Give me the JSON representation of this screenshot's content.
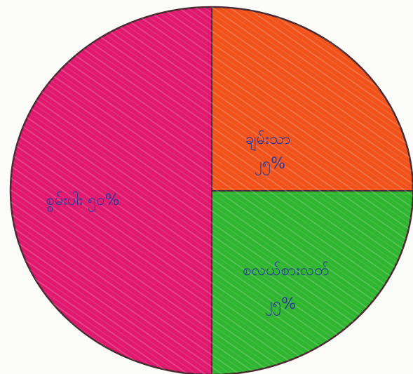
{
  "chart_data": {
    "type": "pie",
    "slices": [
      {
        "label": "စွမ်းပါး",
        "value_label": "၅၀%",
        "value": 50,
        "color": "#e0196e"
      },
      {
        "label": "ချမ်းသာ",
        "value_label": "၂၅%",
        "value": 25,
        "color": "#f0521a"
      },
      {
        "label": "စလယ်စားလတ်",
        "value_label": "၂၅%",
        "value": 25,
        "color": "#2fb52f"
      }
    ],
    "title": "",
    "legend": "none"
  },
  "colors": {
    "outline": "#4a2a30",
    "background": "#fbfbfa"
  }
}
